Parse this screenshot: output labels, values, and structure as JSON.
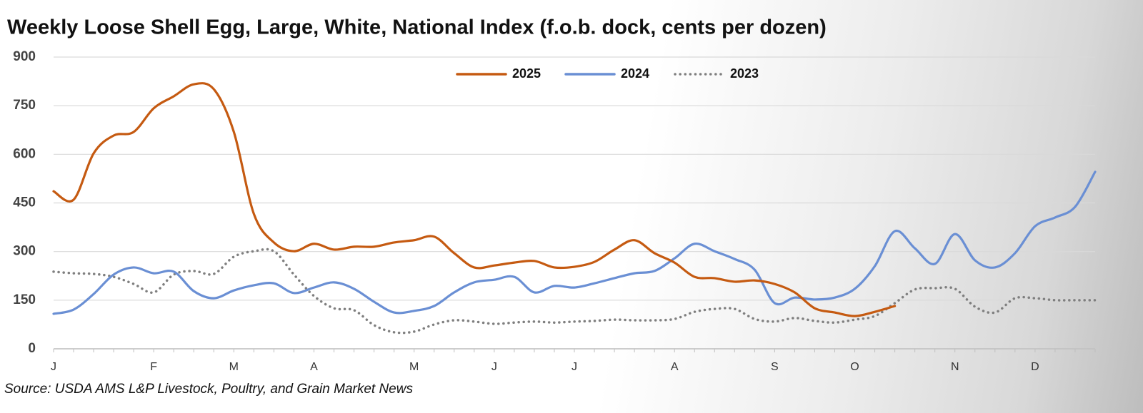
{
  "chart_data": {
    "type": "line",
    "title": "Weekly Loose Shell Egg, Large, White, National Index (f.o.b. dock, cents per dozen)",
    "source": "Source: USDA AMS L&P Livestock, Poultry, and Grain Market News",
    "categories": [
      "J",
      null,
      null,
      null,
      null,
      "F",
      null,
      null,
      null,
      "M",
      null,
      null,
      null,
      "A",
      null,
      null,
      null,
      null,
      "M",
      null,
      null,
      null,
      "J",
      null,
      null,
      null,
      "J",
      null,
      null,
      null,
      null,
      "A",
      null,
      null,
      null,
      null,
      "S",
      null,
      null,
      null,
      "O",
      null,
      null,
      null,
      null,
      "N",
      null,
      null,
      null,
      "D",
      null,
      null,
      null
    ],
    "series": [
      {
        "name": "2025",
        "color": "#c55a11",
        "style": "solid",
        "values": [
          486,
          460,
          603,
          658,
          669,
          742,
          779,
          816,
          801,
          669,
          416,
          328,
          301,
          324,
          306,
          315,
          315,
          328,
          335,
          346,
          295,
          251,
          257,
          266,
          271,
          251,
          253,
          268,
          306,
          335,
          295,
          266,
          222,
          218,
          207,
          211,
          200,
          174,
          125,
          112,
          101,
          114,
          132,
          null,
          null,
          null,
          null,
          null,
          null,
          null,
          null,
          null,
          null
        ]
      },
      {
        "name": "2024",
        "color": "#6a8fd4",
        "style": "solid",
        "values": [
          108,
          121,
          169,
          229,
          251,
          233,
          238,
          178,
          156,
          180,
          196,
          202,
          172,
          189,
          205,
          185,
          145,
          112,
          117,
          132,
          174,
          205,
          213,
          222,
          174,
          194,
          189,
          202,
          218,
          233,
          240,
          279,
          324,
          301,
          277,
          244,
          141,
          158,
          152,
          158,
          185,
          255,
          363,
          310,
          262,
          354,
          273,
          251,
          295,
          378,
          405,
          438,
          546
        ]
      },
      {
        "name": "2023",
        "color": "#7f7f7f",
        "style": "dotted",
        "values": [
          238,
          233,
          231,
          222,
          200,
          174,
          229,
          240,
          231,
          284,
          301,
          301,
          229,
          163,
          125,
          119,
          73,
          51,
          53,
          75,
          88,
          84,
          77,
          81,
          84,
          81,
          84,
          86,
          90,
          88,
          88,
          92,
          114,
          123,
          123,
          92,
          84,
          95,
          86,
          81,
          90,
          101,
          141,
          183,
          187,
          185,
          130,
          112,
          156,
          156,
          150,
          150,
          150
        ]
      }
    ],
    "ylim": [
      0,
      900
    ],
    "yticks": [
      0,
      150,
      300,
      450,
      600,
      750,
      900
    ],
    "grid": true,
    "legend": "top"
  }
}
